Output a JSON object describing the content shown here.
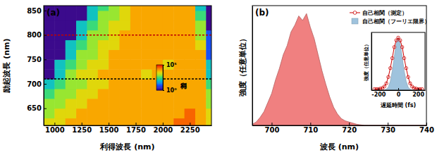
{
  "chart_data": [
    {
      "type": "heatmap",
      "panel_label": "(a)",
      "x_label": "利得波長 (nm)",
      "y_label": "励起波長 (nm)",
      "xlim": [
        900,
        2450
      ],
      "ylim": [
        615,
        860
      ],
      "xticks": [
        1000,
        1250,
        1500,
        1750,
        2000,
        2250
      ],
      "yticks": [
        650,
        700,
        750,
        800,
        850
      ],
      "x": [
        950,
        1050,
        1150,
        1250,
        1350,
        1450,
        1550,
        1650,
        1750,
        1850,
        1950,
        2050,
        2150,
        2250,
        2350,
        2450
      ],
      "y": [
        620,
        640,
        660,
        680,
        700,
        720,
        740,
        760,
        780,
        800,
        820,
        840,
        860
      ],
      "z": [
        [
          3000,
          3000,
          10000,
          10000,
          10000,
          10000,
          10000,
          10000,
          10000,
          10000,
          10000,
          10000,
          30000,
          30000,
          10000,
          3000
        ],
        [
          1000,
          3000,
          3000,
          10000,
          10000,
          10000,
          10000,
          10000,
          10000,
          10000,
          10000,
          10000,
          10000,
          30000,
          10000,
          3000
        ],
        [
          1000,
          1000,
          3000,
          3000,
          10000,
          10000,
          10000,
          10000,
          10000,
          10000,
          10000,
          10000,
          10000,
          10000,
          10000,
          1000
        ],
        [
          300,
          1000,
          1000,
          3000,
          3000,
          10000,
          10000,
          10000,
          10000,
          10000,
          10000,
          10000,
          10000,
          10000,
          10000,
          1000
        ],
        [
          100,
          300,
          1000,
          1000,
          3000,
          3000,
          10000,
          10000,
          10000,
          10000,
          10000,
          10000,
          10000,
          10000,
          10000,
          300
        ],
        [
          1,
          100,
          1000,
          3000,
          3000,
          10000,
          10000,
          10000,
          10000,
          3000,
          10000,
          10000,
          10000,
          10000,
          10000,
          100
        ],
        [
          1,
          100,
          300,
          1000,
          3000,
          3000,
          10000,
          10000,
          10000,
          10000,
          10000,
          3000,
          10000,
          10000,
          10000,
          100
        ],
        [
          1,
          1,
          100,
          1000,
          1000,
          3000,
          10000,
          10000,
          10000,
          10000,
          10000,
          10000,
          10000,
          10000,
          10000,
          10
        ],
        [
          1,
          1,
          100,
          300,
          1000,
          3000,
          3000,
          10000,
          10000,
          10000,
          10000,
          10000,
          10000,
          10000,
          3000,
          10
        ],
        [
          1,
          1,
          1,
          100,
          1000,
          1000,
          3000,
          10000,
          10000,
          10000,
          10000,
          10000,
          10000,
          10000,
          1000,
          10
        ],
        [
          1,
          1,
          1,
          100,
          300,
          1000,
          3000,
          3000,
          10000,
          10000,
          10000,
          10000,
          10000,
          10000,
          1000,
          1
        ],
        [
          1,
          1,
          1,
          1,
          100,
          1000,
          1000,
          3000,
          10000,
          10000,
          10000,
          10000,
          10000,
          10000,
          300,
          1
        ],
        [
          1,
          1,
          1,
          1,
          100,
          300,
          1000,
          3000,
          10000,
          10000,
          10000,
          10000,
          10000,
          10000,
          100,
          1
        ]
      ],
      "colorbar": {
        "label": "利得",
        "log": true,
        "lim": [
          1,
          100000
        ],
        "ticks": [
          {
            "value": 1,
            "label": "10⁰"
          },
          {
            "value": 100000,
            "label": "10⁵"
          }
        ]
      },
      "hlines": [
        {
          "value": 800,
          "color": "#c00000",
          "line_style": "dashed"
        },
        {
          "value": 710,
          "color": "#000000",
          "line_style": "dashed"
        }
      ]
    },
    {
      "type": "area",
      "panel_label": "(b)",
      "x_label": "波長 (nm)",
      "y_label": "強度（任意単位）",
      "xlim": [
        695,
        740
      ],
      "ylim": [
        0,
        1.05
      ],
      "xticks": [
        700,
        710,
        720,
        730,
        740
      ],
      "tick_labels": "x",
      "x": [
        695,
        696,
        697,
        698,
        699,
        700,
        701,
        702,
        703,
        704,
        705,
        706,
        707,
        708,
        709,
        710,
        711,
        712,
        713,
        714,
        715,
        716,
        717,
        718,
        719,
        720,
        721,
        722,
        723,
        724,
        725,
        726,
        727,
        728,
        729,
        730,
        731,
        732,
        733,
        734,
        735,
        736,
        737,
        738,
        739,
        740
      ],
      "series": [
        {
          "color": "#f08080",
          "values": [
            0.01,
            0.03,
            0.07,
            0.12,
            0.2,
            0.28,
            0.4,
            0.5,
            0.62,
            0.7,
            0.82,
            0.88,
            0.96,
            0.92,
            0.98,
            0.86,
            0.76,
            0.62,
            0.48,
            0.36,
            0.25,
            0.16,
            0.1,
            0.06,
            0.04,
            0.03,
            0.02,
            0.01,
            0.005,
            0,
            0,
            0,
            0,
            0,
            0,
            0,
            0,
            0,
            0,
            0,
            0,
            0,
            0,
            0,
            0,
            0
          ]
        }
      ],
      "inset": {
        "type": "line",
        "x_label": "遅延時間 (fs)",
        "y_label": "強度（任意単位）",
        "xlim": [
          -270,
          270
        ],
        "ylim": [
          0,
          1.1
        ],
        "xticks": [
          -200,
          0,
          200
        ],
        "tick_labels": "x",
        "legend": "top",
        "x": [
          -240,
          -220,
          -200,
          -180,
          -160,
          -140,
          -120,
          -100,
          -80,
          -60,
          -40,
          -20,
          0,
          20,
          40,
          60,
          80,
          100,
          120,
          140,
          160,
          180,
          200,
          220,
          240
        ],
        "series": [
          {
            "name": "自己相関（測定）",
            "type": "line",
            "marker": "circle",
            "color": "#cc0000",
            "values": [
              0.02,
              0.02,
              0.02,
              0.03,
              0.04,
              0.07,
              0.13,
              0.25,
              0.42,
              0.61,
              0.82,
              0.95,
              1.0,
              0.95,
              0.82,
              0.61,
              0.42,
              0.25,
              0.13,
              0.07,
              0.04,
              0.03,
              0.02,
              0.02,
              0.02
            ]
          },
          {
            "name": "自己相関（フーリエ限界）",
            "type": "area",
            "color": "#9fc3dd",
            "values": [
              0,
              0,
              0,
              0,
              0,
              0.005,
              0.02,
              0.06,
              0.17,
              0.37,
              0.64,
              0.89,
              1.0,
              0.89,
              0.64,
              0.37,
              0.17,
              0.06,
              0.02,
              0.005,
              0,
              0,
              0,
              0,
              0
            ]
          }
        ]
      }
    }
  ]
}
